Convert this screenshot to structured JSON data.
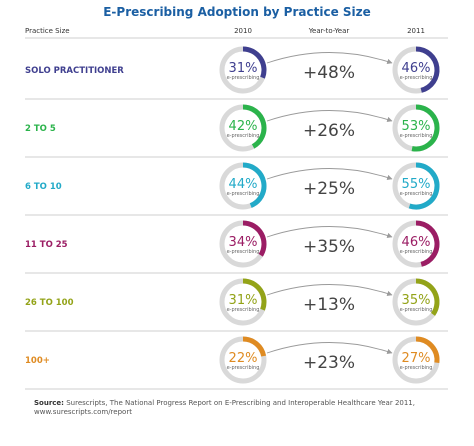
{
  "chart_data": {
    "type": "table",
    "title": "E-Prescribing Adoption by Practice Size",
    "headers": {
      "practice_size": "Practice Size",
      "year1": "2010",
      "change": "Year-to-Year",
      "year2": "2011"
    },
    "donut_sublabel": "e-prescribing",
    "rows": [
      {
        "label": "SOLO PRACTITIONER",
        "v2010": 31,
        "v2011": 46,
        "change": "+48%",
        "color": "#3f3f8f"
      },
      {
        "label": "2 TO 5",
        "v2010": 42,
        "v2011": 53,
        "change": "+26%",
        "color": "#2bb34b"
      },
      {
        "label": "6 TO 10",
        "v2010": 44,
        "v2011": 55,
        "change": "+25%",
        "color": "#22aac8"
      },
      {
        "label": "11 TO 25",
        "v2010": 34,
        "v2011": 46,
        "change": "+35%",
        "color": "#9b1d64"
      },
      {
        "label": "26 TO 100",
        "v2010": 31,
        "v2011": 35,
        "change": "+13%",
        "color": "#93a318"
      },
      {
        "label": "100+",
        "v2010": 22,
        "v2011": 27,
        "change": "+23%",
        "color": "#df8b22"
      }
    ]
  },
  "colors": {
    "title": "#1b5fa3",
    "track": "#d9d9d9",
    "divider": "#bfbfbf",
    "arrow": "#9a9a9a",
    "change_text": "#444444"
  },
  "source": {
    "label": "Source:",
    "line1": "Surescripts, The National Progress Report on E-Prescribing and Interoperable Healthcare Year 2011,",
    "line2": "www.surescripts.com/report"
  }
}
